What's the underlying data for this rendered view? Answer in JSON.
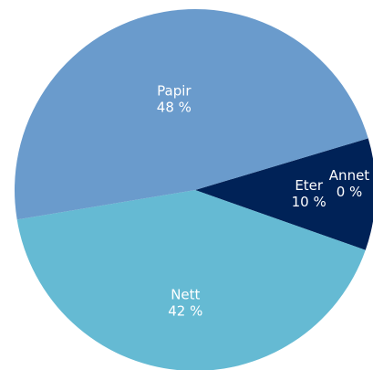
{
  "chart_data": {
    "type": "pie",
    "title": "",
    "slices": [
      {
        "label": "Eter",
        "value": 10,
        "value_label": "10 %",
        "color": "#002257"
      },
      {
        "label": "Annet",
        "value": 0,
        "value_label": "0 %",
        "color": "#6ebecc"
      },
      {
        "label": "Nett",
        "value": 42,
        "value_label": "42 %",
        "color": "#65bad3"
      },
      {
        "label": "Papir",
        "value": 48,
        "value_label": "48 %",
        "color": "#6a9bcc"
      }
    ]
  }
}
